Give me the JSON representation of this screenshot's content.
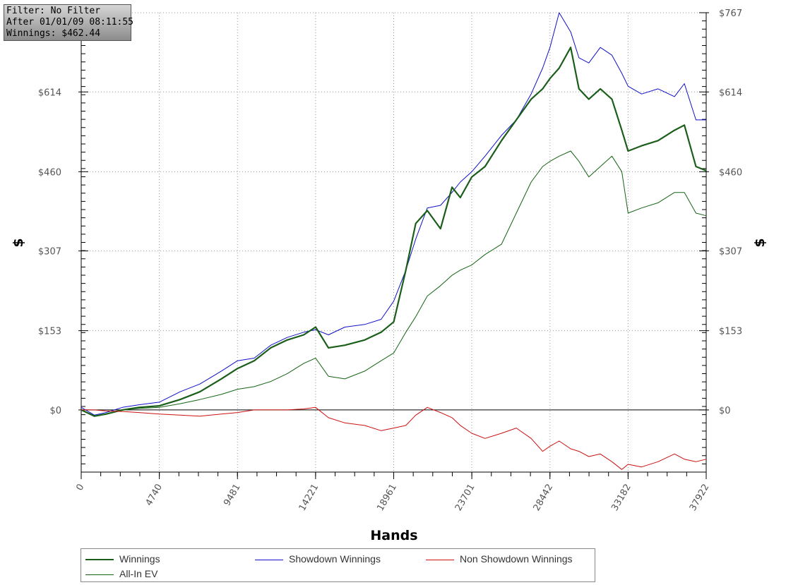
{
  "info": {
    "filter": "Filter: No Filter",
    "after": "After 01/01/09 08:11:55",
    "winnings": "Winnings: $462.44"
  },
  "chart_data": {
    "type": "line",
    "xlabel": "Hands",
    "ylabel_left": "$",
    "ylabel_right": "$",
    "xlim": [
      0,
      37922
    ],
    "ylim": [
      -120,
      767
    ],
    "x_ticks": [
      "0",
      "4740",
      "9481",
      "14221",
      "18961",
      "23701",
      "28442",
      "33182",
      "37922"
    ],
    "x_tick_values": [
      0,
      4740,
      9481,
      14221,
      18961,
      23701,
      28442,
      33182,
      37922
    ],
    "y_ticks": [
      "$0",
      "$153",
      "$307",
      "$460",
      "$614",
      "$767"
    ],
    "y_tick_values": [
      0,
      153,
      307,
      460,
      614,
      767
    ],
    "grid": true,
    "colors": {
      "winnings": "#1a5e1a",
      "showdown": "#1010c8",
      "nonshowdown": "#cc1010",
      "allin": "#146414",
      "grid": "#999999",
      "zero_line": "#000000"
    },
    "legend": {
      "placement": "bottom",
      "entries": [
        "Winnings",
        "Showdown Winnings",
        "Non Showdown Winnings",
        "All-In EV"
      ]
    },
    "series": [
      {
        "name": "Showdown Winnings",
        "key": "showdown",
        "x": [
          0,
          800,
          1500,
          2500,
          3500,
          4740,
          6000,
          7200,
          8500,
          9481,
          10500,
          11500,
          12500,
          13500,
          14221,
          15000,
          16000,
          17200,
          18200,
          18961,
          19700,
          20300,
          21000,
          21800,
          22500,
          23000,
          23701,
          24500,
          25500,
          26400,
          27300,
          28000,
          28442,
          29000,
          29700,
          30200,
          30800,
          31500,
          32200,
          32800,
          33182,
          34000,
          35000,
          36000,
          36600,
          37300,
          37922
        ],
        "y": [
          5,
          -10,
          -5,
          5,
          10,
          15,
          35,
          50,
          75,
          95,
          100,
          125,
          140,
          150,
          155,
          145,
          160,
          165,
          175,
          210,
          270,
          330,
          390,
          395,
          420,
          440,
          460,
          490,
          530,
          560,
          610,
          660,
          700,
          767,
          730,
          680,
          670,
          700,
          685,
          650,
          625,
          610,
          620,
          605,
          630,
          560,
          560
        ]
      },
      {
        "name": "Winnings",
        "key": "winnings",
        "x": [
          0,
          800,
          1500,
          2500,
          3500,
          4740,
          6000,
          7200,
          8500,
          9481,
          10500,
          11500,
          12500,
          13500,
          14221,
          15000,
          16000,
          17200,
          18200,
          18961,
          19700,
          20300,
          21000,
          21800,
          22500,
          23000,
          23701,
          24500,
          25500,
          26400,
          27300,
          28000,
          28442,
          29000,
          29700,
          30200,
          30800,
          31500,
          32200,
          32800,
          33182,
          34000,
          35000,
          36000,
          36600,
          37300,
          37922
        ],
        "y": [
          0,
          -12,
          -8,
          0,
          5,
          8,
          20,
          35,
          60,
          80,
          95,
          120,
          135,
          145,
          160,
          120,
          125,
          135,
          150,
          170,
          270,
          360,
          385,
          350,
          430,
          410,
          450,
          470,
          520,
          560,
          600,
          620,
          640,
          660,
          700,
          620,
          600,
          620,
          600,
          540,
          500,
          510,
          520,
          540,
          550,
          470,
          462
        ]
      },
      {
        "name": "All-In EV",
        "key": "allin",
        "x": [
          0,
          800,
          1500,
          2500,
          3500,
          4740,
          6000,
          7200,
          8500,
          9481,
          10500,
          11500,
          12500,
          13500,
          14221,
          15000,
          16000,
          17200,
          18200,
          18961,
          19700,
          20300,
          21000,
          21800,
          22500,
          23000,
          23701,
          24500,
          25500,
          26400,
          27300,
          28000,
          28442,
          29000,
          29700,
          30200,
          30800,
          31500,
          32200,
          32800,
          33182,
          34000,
          35000,
          36000,
          36600,
          37300,
          37922
        ],
        "y": [
          0,
          -12,
          -8,
          0,
          3,
          5,
          12,
          20,
          30,
          40,
          45,
          55,
          70,
          90,
          100,
          65,
          60,
          75,
          95,
          110,
          150,
          180,
          220,
          240,
          260,
          270,
          280,
          300,
          320,
          380,
          440,
          470,
          480,
          490,
          500,
          480,
          450,
          470,
          490,
          460,
          380,
          390,
          400,
          420,
          420,
          380,
          375
        ]
      },
      {
        "name": "Non Showdown Winnings",
        "key": "nonshowdown",
        "x": [
          0,
          800,
          1500,
          2500,
          3500,
          4740,
          6000,
          7200,
          8500,
          9481,
          10500,
          11500,
          12500,
          13500,
          14221,
          15000,
          16000,
          17200,
          18200,
          18961,
          19700,
          20300,
          21000,
          21800,
          22500,
          23000,
          23701,
          24500,
          25500,
          26400,
          27300,
          28000,
          28442,
          29000,
          29700,
          30200,
          30800,
          31500,
          32200,
          32800,
          33182,
          34000,
          35000,
          36000,
          36600,
          37300,
          37922
        ],
        "y": [
          0,
          0,
          -2,
          -3,
          -5,
          -8,
          -10,
          -12,
          -8,
          -5,
          0,
          0,
          0,
          2,
          5,
          -15,
          -25,
          -30,
          -40,
          -35,
          -30,
          -10,
          5,
          -5,
          -15,
          -30,
          -45,
          -55,
          -45,
          -35,
          -55,
          -80,
          -70,
          -60,
          -75,
          -80,
          -90,
          -85,
          -100,
          -115,
          -105,
          -110,
          -100,
          -85,
          -95,
          -100,
          -95
        ]
      }
    ]
  }
}
